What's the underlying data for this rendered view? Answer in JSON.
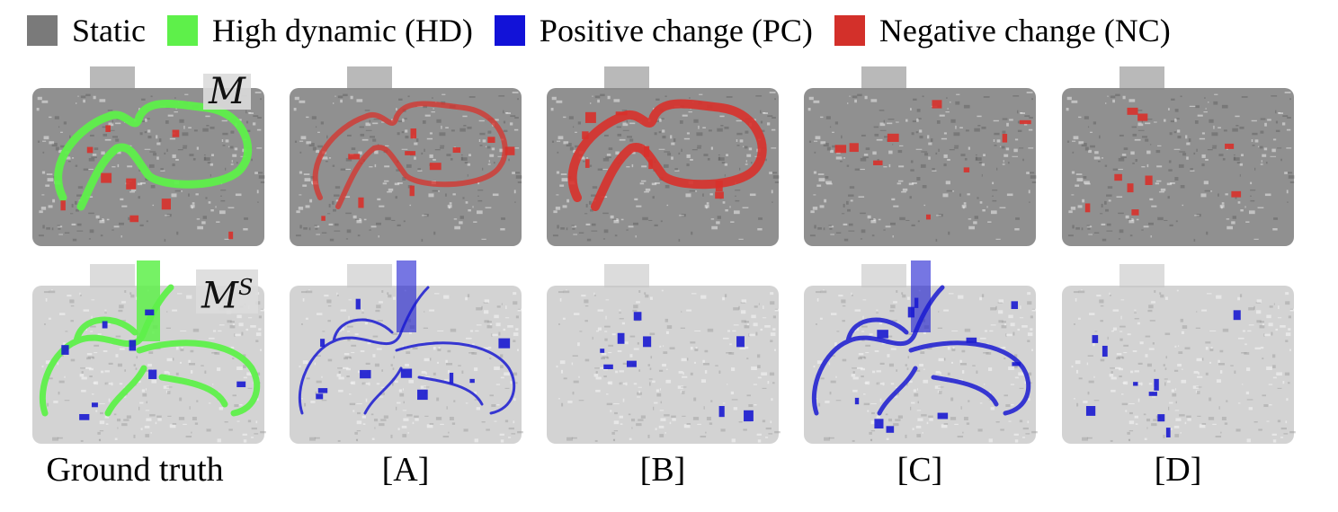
{
  "legend": [
    {
      "label": "Static",
      "color": "#7a7a7a",
      "icon": "gray-square"
    },
    {
      "label": "High dynamic (HD)",
      "color": "#5ef04a",
      "icon": "green-square"
    },
    {
      "label": "Positive change (PC)",
      "color": "#1212d8",
      "icon": "blue-square"
    },
    {
      "label": "Negative change (NC)",
      "color": "#d3302a",
      "icon": "red-square"
    }
  ],
  "rows": {
    "top_label": "M",
    "bottom_label": "M",
    "bottom_label_sup": "S"
  },
  "captions": [
    "Ground truth",
    "[A]",
    "[B]",
    "[C]",
    "[D]"
  ],
  "colors": {
    "static_top": "#8a8a8a",
    "static_bottom": "#c4c4c4",
    "high_dynamic": "#5ef04a",
    "positive_change": "#1a1ad0",
    "negative_change": "#d8312b"
  }
}
